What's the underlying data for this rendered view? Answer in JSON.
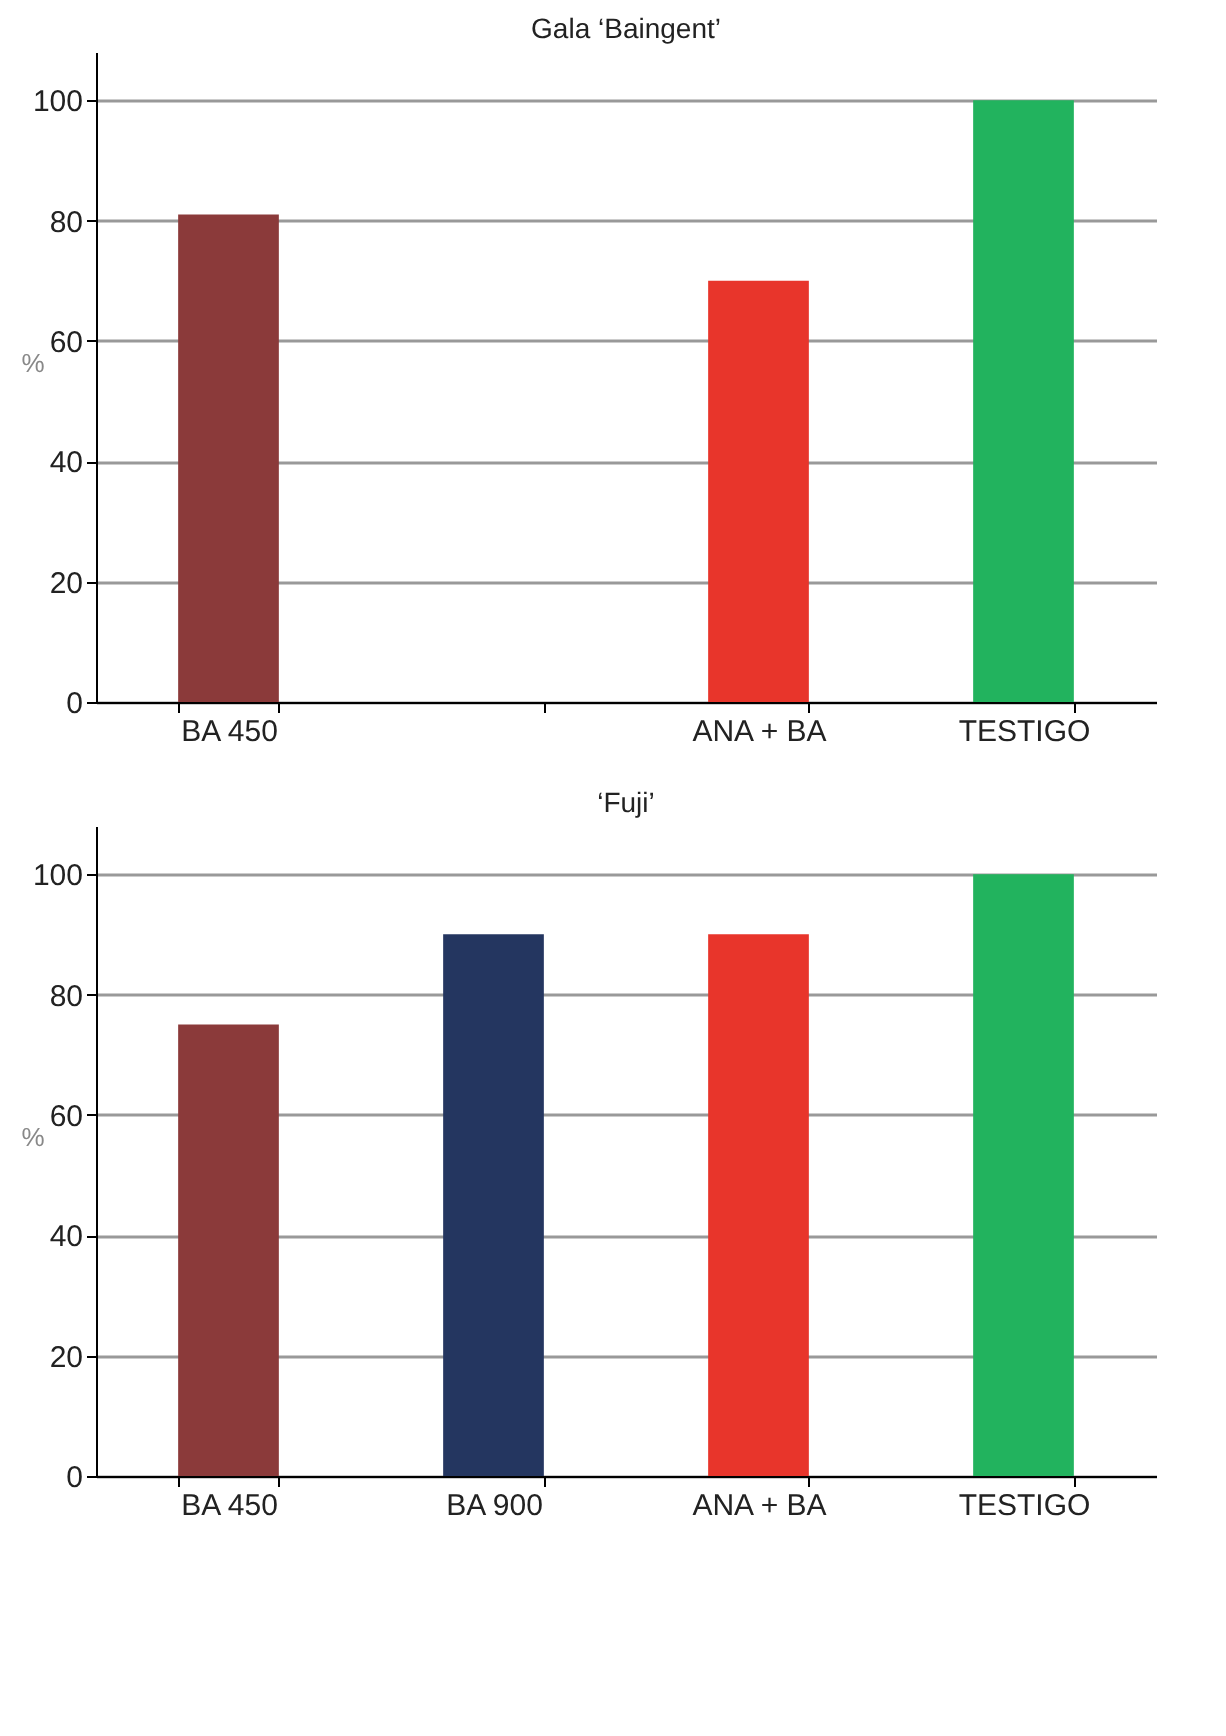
{
  "chart_data": [
    {
      "type": "bar",
      "title": "Gala ‘Baingent’",
      "ylabel": "%",
      "categories": [
        "BA 450",
        null,
        "ANA + BA",
        "TESTIGO"
      ],
      "values": [
        81,
        null,
        70,
        100
      ],
      "colors": [
        "#8b3a3a",
        null,
        "#e8352b",
        "#22b35e"
      ],
      "ylim": [
        0,
        108
      ],
      "yticks": [
        0,
        20,
        40,
        60,
        80,
        100
      ],
      "grid": "y"
    },
    {
      "type": "bar",
      "title": "‘Fuji’",
      "ylabel": "%",
      "categories": [
        "BA 450",
        "BA 900",
        "ANA + BA",
        "TESTIGO"
      ],
      "values": [
        75,
        90,
        90,
        100
      ],
      "colors": [
        "#8b3a3a",
        "#243660",
        "#e8352b",
        "#22b35e"
      ],
      "ylim": [
        0,
        108
      ],
      "yticks": [
        0,
        20,
        40,
        60,
        80,
        100
      ],
      "grid": "y"
    }
  ]
}
